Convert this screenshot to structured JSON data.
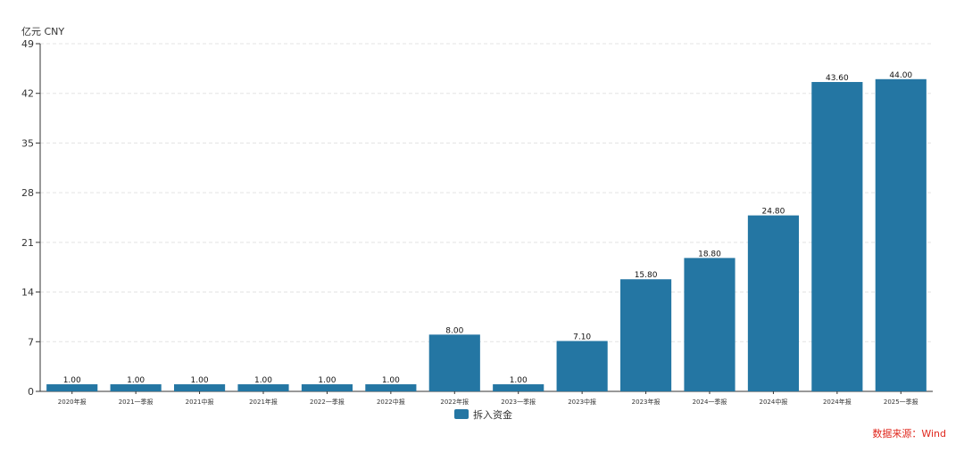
{
  "chart_data": {
    "type": "bar",
    "unit_label": "亿元  CNY",
    "categories": [
      "2020年报",
      "2021一季报",
      "2021中报",
      "2021年报",
      "2022一季报",
      "2022中报",
      "2022年报",
      "2023一季报",
      "2023中报",
      "2023年报",
      "2024一季报",
      "2024中报",
      "2024年报",
      "2025一季报"
    ],
    "series": [
      {
        "name": "拆入资金",
        "color": "#2476a3",
        "values": [
          1.0,
          1.0,
          1.0,
          1.0,
          1.0,
          1.0,
          8.0,
          1.0,
          7.1,
          15.8,
          18.8,
          24.8,
          43.6,
          44.0
        ],
        "labels": [
          "1.00",
          "1.00",
          "1.00",
          "1.00",
          "1.00",
          "1.00",
          "8.00",
          "1.00",
          "7.10",
          "15.80",
          "18.80",
          "24.80",
          "43.60",
          "44.00"
        ]
      }
    ],
    "yticks": [
      "0",
      "7",
      "14",
      "21",
      "28",
      "35",
      "42",
      "49"
    ],
    "ylim": [
      0,
      49
    ],
    "grid": true,
    "legend_position": "bottom-center",
    "source": "数据来源：Wind"
  }
}
